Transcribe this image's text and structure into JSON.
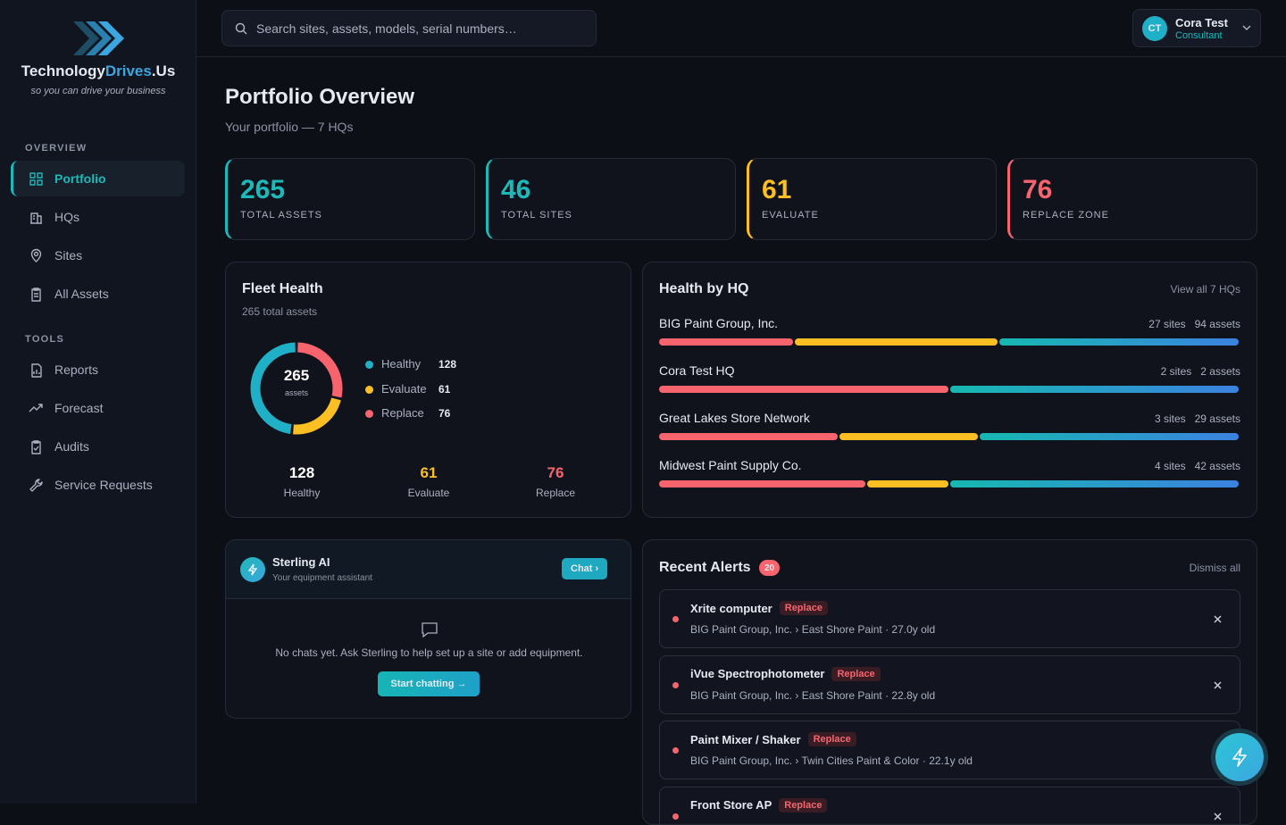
{
  "brand": {
    "part1": "Technology",
    "part2": "Drives",
    "part3": ".Us",
    "tagline": "so you can drive your business"
  },
  "nav": [
    {
      "title": "OVERVIEW",
      "items": [
        "Portfolio",
        "HQs",
        "Sites",
        "All Assets"
      ]
    },
    {
      "title": "TOOLS",
      "items": [
        "Reports",
        "Forecast",
        "Audits",
        "Service Requests"
      ]
    }
  ],
  "search_placeholder": "Search sites, assets, models, serial numbers…",
  "user": {
    "initials": "CT",
    "name": "Cora Test",
    "role": "Consultant"
  },
  "page": {
    "title": "Portfolio Overview",
    "subtitle": "Your portfolio — 7 HQs"
  },
  "stats": [
    {
      "value": 265,
      "label": "TOTAL ASSETS",
      "color": "#1fb8b8"
    },
    {
      "value": 46,
      "label": "TOTAL SITES",
      "color": "#1fb8b8"
    },
    {
      "value": 61,
      "label": "EVALUATE",
      "color": "#fbbf24"
    },
    {
      "value": 76,
      "label": "REPLACE ZONE",
      "color": "#f7646e"
    }
  ],
  "fleet_health": {
    "title": "Fleet Health",
    "subtitle": "265 total assets",
    "total": 265,
    "total_label": "assets",
    "segments": [
      {
        "name": "Healthy",
        "value": 128,
        "color": "#1fb0c8"
      },
      {
        "name": "Evaluate",
        "value": 61,
        "color": "#fbbf24"
      },
      {
        "name": "Replace",
        "value": 76,
        "color": "#f7646e"
      }
    ]
  },
  "hq_health": {
    "title": "Health by HQ",
    "link": "View all 7 HQs",
    "rows": [
      {
        "name": "BIG Paint Group, Inc.",
        "sites": "27 sites",
        "assets": "94 assets",
        "replace": 22,
        "evaluate": 33,
        "healthy": 39
      },
      {
        "name": "Cora Test HQ",
        "sites": "2 sites",
        "assets": "2 assets",
        "replace": 1,
        "evaluate": 0,
        "healthy": 1
      },
      {
        "name": "Great Lakes Store Network",
        "sites": "3 sites",
        "assets": "29 assets",
        "replace": 9,
        "evaluate": 7,
        "healthy": 13
      },
      {
        "name": "Midwest Paint Supply Co.",
        "sites": "4 sites",
        "assets": "42 assets",
        "replace": 15,
        "evaluate": 6,
        "healthy": 21
      }
    ]
  },
  "assistant": {
    "name": "Sterling AI",
    "subtitle": "Your equipment assistant",
    "chat_button": "Chat",
    "empty_text": "No chats yet. Ask Sterling to help set up a site or add equipment.",
    "cta": "Start chatting →"
  },
  "alerts": {
    "title": "Recent Alerts",
    "count": 20,
    "dismiss": "Dismiss all",
    "items": [
      {
        "title": "Xrite computer",
        "tag": "Replace",
        "detail": "BIG Paint Group, Inc. › East Shore Paint · 27.0y old"
      },
      {
        "title": "iVue Spectrophotometer",
        "tag": "Replace",
        "detail": "BIG Paint Group, Inc. › East Shore Paint · 22.8y old"
      },
      {
        "title": "Paint Mixer / Shaker",
        "tag": "Replace",
        "detail": "BIG Paint Group, Inc. › Twin Cities Paint & Color · 22.1y old"
      },
      {
        "title": "Front Store AP",
        "tag": "Replace",
        "detail": ""
      }
    ]
  }
}
